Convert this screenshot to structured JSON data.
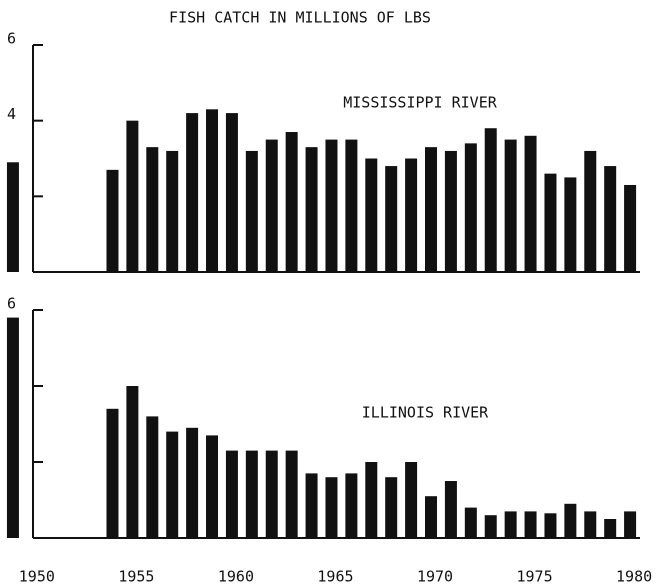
{
  "chart_data": [
    {
      "type": "bar",
      "title": "FISH CATCH IN MILLIONS OF LBS",
      "annotation": "MISSISSIPPI RIVER",
      "color": "#111111",
      "x": [
        1949,
        1954,
        1955,
        1956,
        1957,
        1958,
        1959,
        1960,
        1961,
        1962,
        1963,
        1964,
        1965,
        1966,
        1967,
        1968,
        1969,
        1970,
        1971,
        1972,
        1973,
        1974,
        1975,
        1976,
        1977,
        1978,
        1979,
        1980
      ],
      "values": [
        2.9,
        2.7,
        4.0,
        3.3,
        3.2,
        4.2,
        4.3,
        4.2,
        3.2,
        3.5,
        3.7,
        3.3,
        3.5,
        3.5,
        3.0,
        2.8,
        3.0,
        3.3,
        3.2,
        3.4,
        3.8,
        3.5,
        3.6,
        2.6,
        2.5,
        3.2,
        2.8,
        2.3
      ],
      "xlim": [
        1948.35,
        1981
      ],
      "ylim": [
        0,
        6
      ],
      "yticks": [
        0,
        2,
        4,
        6
      ]
    },
    {
      "type": "bar",
      "annotation": "ILLINOIS RIVER",
      "color": "#111111",
      "x": [
        1949,
        1954,
        1955,
        1956,
        1957,
        1958,
        1959,
        1960,
        1961,
        1962,
        1963,
        1964,
        1965,
        1966,
        1967,
        1968,
        1969,
        1970,
        1971,
        1972,
        1973,
        1974,
        1975,
        1976,
        1977,
        1978,
        1979,
        1980
      ],
      "values": [
        5.8,
        3.4,
        4.0,
        3.2,
        2.8,
        2.9,
        2.7,
        2.3,
        2.3,
        2.3,
        2.3,
        1.7,
        1.6,
        1.7,
        2.0,
        1.6,
        2.0,
        1.1,
        1.5,
        0.8,
        0.6,
        0.7,
        0.7,
        0.65,
        0.9,
        0.7,
        0.5,
        0.7
      ],
      "xlim": [
        1948.35,
        1981
      ],
      "ylim": [
        0,
        6
      ],
      "yticks": [
        0,
        2,
        4,
        6
      ],
      "xticks": [
        1950,
        1955,
        1960,
        1965,
        1970,
        1975,
        1980
      ]
    }
  ]
}
